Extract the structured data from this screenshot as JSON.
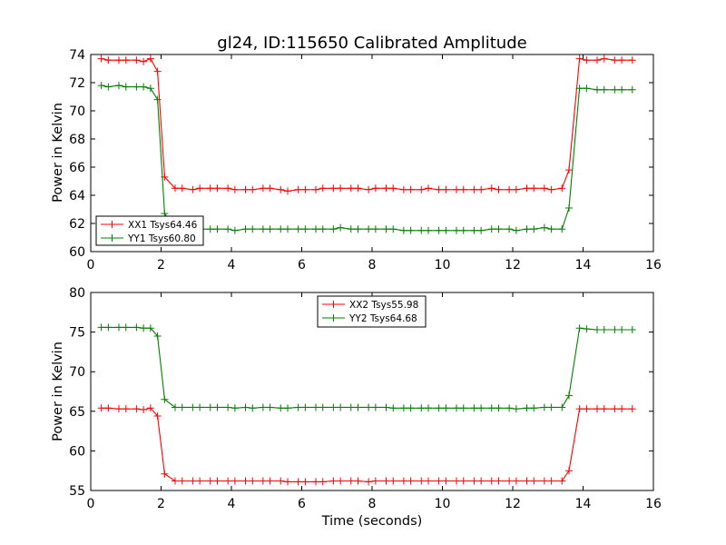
{
  "chart_data": [
    {
      "type": "line",
      "title": "gl24, ID:115650 Calibrated Amplitude",
      "xlabel": "",
      "ylabel": "Power in Kelvin",
      "xlim": [
        0,
        16
      ],
      "ylim": [
        60,
        74
      ],
      "xticks": [
        "0",
        "2",
        "4",
        "6",
        "8",
        "10",
        "12",
        "14",
        "16"
      ],
      "yticks": [
        "60",
        "62",
        "64",
        "66",
        "68",
        "70",
        "72",
        "74"
      ],
      "legend_position": "lower-left",
      "x": [
        0.3,
        0.5,
        0.8,
        1.0,
        1.3,
        1.5,
        1.7,
        1.9,
        2.1,
        2.4,
        2.6,
        2.9,
        3.1,
        3.4,
        3.6,
        3.9,
        4.1,
        4.4,
        4.6,
        4.9,
        5.1,
        5.4,
        5.6,
        5.9,
        6.1,
        6.4,
        6.6,
        6.9,
        7.1,
        7.4,
        7.6,
        7.9,
        8.1,
        8.4,
        8.6,
        8.9,
        9.1,
        9.4,
        9.6,
        9.9,
        10.1,
        10.4,
        10.6,
        10.9,
        11.1,
        11.4,
        11.6,
        11.9,
        12.1,
        12.4,
        12.6,
        12.9,
        13.1,
        13.4,
        13.6,
        13.9,
        14.1,
        14.4,
        14.6,
        14.9,
        15.1,
        15.4
      ],
      "series": [
        {
          "name": "XX1 Tsys64.46",
          "color": "#ff0000",
          "values": [
            73.7,
            73.6,
            73.6,
            73.6,
            73.6,
            73.5,
            73.7,
            72.8,
            65.3,
            64.5,
            64.5,
            64.4,
            64.5,
            64.5,
            64.5,
            64.5,
            64.4,
            64.4,
            64.4,
            64.5,
            64.5,
            64.4,
            64.3,
            64.4,
            64.4,
            64.4,
            64.5,
            64.5,
            64.5,
            64.5,
            64.5,
            64.4,
            64.5,
            64.5,
            64.5,
            64.4,
            64.4,
            64.4,
            64.5,
            64.4,
            64.4,
            64.4,
            64.4,
            64.4,
            64.4,
            64.5,
            64.4,
            64.4,
            64.4,
            64.5,
            64.5,
            64.5,
            64.4,
            64.5,
            65.8,
            73.7,
            73.6,
            73.6,
            73.7,
            73.6,
            73.6,
            73.6
          ]
        },
        {
          "name": "YY1 Tsys60.80",
          "color": "#008000",
          "values": [
            71.8,
            71.7,
            71.8,
            71.7,
            71.7,
            71.7,
            71.6,
            70.8,
            62.7,
            61.6,
            61.6,
            61.6,
            61.6,
            61.6,
            61.6,
            61.6,
            61.5,
            61.6,
            61.6,
            61.6,
            61.6,
            61.6,
            61.6,
            61.6,
            61.6,
            61.6,
            61.6,
            61.6,
            61.7,
            61.6,
            61.6,
            61.6,
            61.6,
            61.6,
            61.6,
            61.5,
            61.5,
            61.5,
            61.5,
            61.5,
            61.5,
            61.5,
            61.5,
            61.5,
            61.5,
            61.6,
            61.6,
            61.6,
            61.5,
            61.6,
            61.6,
            61.7,
            61.6,
            61.6,
            63.1,
            71.6,
            71.6,
            71.5,
            71.5,
            71.5,
            71.5,
            71.5
          ]
        }
      ]
    },
    {
      "type": "line",
      "title": "",
      "xlabel": "Time (seconds)",
      "ylabel": "Power in Kelvin",
      "xlim": [
        0,
        16
      ],
      "ylim": [
        55,
        80
      ],
      "xticks": [
        "0",
        "2",
        "4",
        "6",
        "8",
        "10",
        "12",
        "14",
        "16"
      ],
      "yticks": [
        "55",
        "60",
        "65",
        "70",
        "75",
        "80"
      ],
      "legend_position": "top-center",
      "x": [
        0.3,
        0.5,
        0.8,
        1.0,
        1.3,
        1.5,
        1.7,
        1.9,
        2.1,
        2.4,
        2.6,
        2.9,
        3.1,
        3.4,
        3.6,
        3.9,
        4.1,
        4.4,
        4.6,
        4.9,
        5.1,
        5.4,
        5.6,
        5.9,
        6.1,
        6.4,
        6.6,
        6.9,
        7.1,
        7.4,
        7.6,
        7.9,
        8.1,
        8.4,
        8.6,
        8.9,
        9.1,
        9.4,
        9.6,
        9.9,
        10.1,
        10.4,
        10.6,
        10.9,
        11.1,
        11.4,
        11.6,
        11.9,
        12.1,
        12.4,
        12.6,
        12.9,
        13.1,
        13.4,
        13.6,
        13.9,
        14.1,
        14.4,
        14.6,
        14.9,
        15.1,
        15.4
      ],
      "series": [
        {
          "name": "XX2 Tsys55.98",
          "color": "#ff0000",
          "values": [
            65.4,
            65.4,
            65.3,
            65.3,
            65.3,
            65.2,
            65.4,
            64.4,
            57.1,
            56.2,
            56.2,
            56.2,
            56.2,
            56.2,
            56.2,
            56.2,
            56.2,
            56.2,
            56.2,
            56.2,
            56.2,
            56.2,
            56.1,
            56.1,
            56.1,
            56.1,
            56.1,
            56.2,
            56.2,
            56.2,
            56.2,
            56.1,
            56.2,
            56.2,
            56.2,
            56.2,
            56.2,
            56.2,
            56.2,
            56.2,
            56.2,
            56.2,
            56.2,
            56.2,
            56.2,
            56.2,
            56.2,
            56.2,
            56.2,
            56.2,
            56.2,
            56.2,
            56.2,
            56.2,
            57.5,
            65.3,
            65.3,
            65.3,
            65.3,
            65.3,
            65.3,
            65.3
          ]
        },
        {
          "name": "YY2 Tsys64.68",
          "color": "#008000",
          "values": [
            75.6,
            75.6,
            75.6,
            75.6,
            75.6,
            75.5,
            75.5,
            74.5,
            66.5,
            65.5,
            65.5,
            65.5,
            65.5,
            65.5,
            65.5,
            65.5,
            65.4,
            65.5,
            65.4,
            65.5,
            65.5,
            65.4,
            65.4,
            65.5,
            65.5,
            65.5,
            65.5,
            65.5,
            65.5,
            65.5,
            65.5,
            65.5,
            65.5,
            65.5,
            65.4,
            65.4,
            65.4,
            65.4,
            65.4,
            65.4,
            65.4,
            65.4,
            65.4,
            65.4,
            65.4,
            65.4,
            65.4,
            65.4,
            65.3,
            65.4,
            65.4,
            65.5,
            65.5,
            65.5,
            67.0,
            75.5,
            75.4,
            75.3,
            75.3,
            75.3,
            75.3,
            75.3
          ]
        }
      ]
    }
  ]
}
